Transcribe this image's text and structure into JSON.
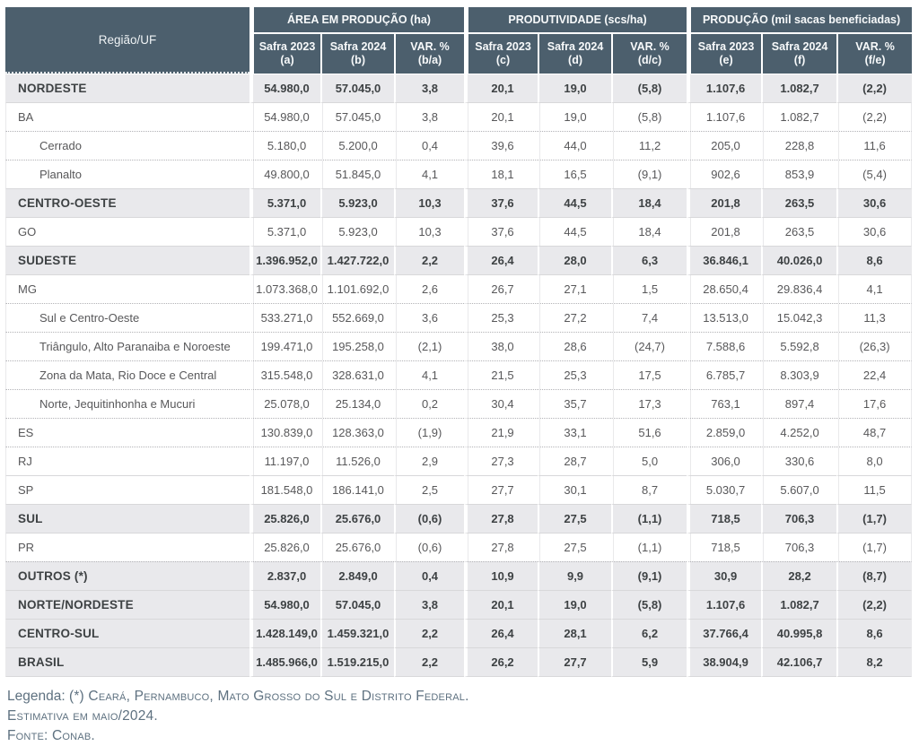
{
  "colors": {
    "header_bg": "#4c5f6d",
    "region_row_bg": "#e9e9ec",
    "divider_solid": "#d8d8da",
    "divider_dotted": "#b2b2b6",
    "legend_text": "#5e7180"
  },
  "table": {
    "region_header": "Região/UF",
    "groups": [
      "ÁREA EM PRODUÇÃO (ha)",
      "PRODUTIVIDADE (scs/ha)",
      "PRODUÇÃO (mil sacas beneficiadas)"
    ],
    "subheaders": [
      {
        "line1": "Safra 2023",
        "line2": "(a)"
      },
      {
        "line1": "Safra 2024",
        "line2": "(b)"
      },
      {
        "line1": "VAR. %",
        "line2": "(b/a)"
      },
      {
        "line1": "Safra 2023",
        "line2": "(c)"
      },
      {
        "line1": "Safra 2024",
        "line2": "(d)"
      },
      {
        "line1": "VAR. %",
        "line2": "(d/c)"
      },
      {
        "line1": "Safra 2023",
        "line2": "(e)"
      },
      {
        "line1": "Safra 2024",
        "line2": "(f)"
      },
      {
        "line1": "VAR. %",
        "line2": "(f/e)"
      }
    ],
    "rows": [
      {
        "label": "NORDESTE",
        "level": "region",
        "divider": "none",
        "values": [
          "54.980,0",
          "57.045,0",
          "3,8",
          "20,1",
          "19,0",
          "(5,8)",
          "1.107,6",
          "1.082,7",
          "(2,2)"
        ]
      },
      {
        "label": "BA",
        "level": "uf",
        "divider": "solid",
        "values": [
          "54.980,0",
          "57.045,0",
          "3,8",
          "20,1",
          "19,0",
          "(5,8)",
          "1.107,6",
          "1.082,7",
          "(2,2)"
        ]
      },
      {
        "label": "Cerrado",
        "level": "sub",
        "divider": "dotted",
        "values": [
          "5.180,0",
          "5.200,0",
          "0,4",
          "39,6",
          "44,0",
          "11,2",
          "205,0",
          "228,8",
          "11,6"
        ]
      },
      {
        "label": "Planalto",
        "level": "sub",
        "divider": "dotted",
        "values": [
          "49.800,0",
          "51.845,0",
          "4,1",
          "18,1",
          "16,5",
          "(9,1)",
          "902,6",
          "853,9",
          "(5,4)"
        ]
      },
      {
        "label": "CENTRO-OESTE",
        "level": "region",
        "divider": "solid",
        "values": [
          "5.371,0",
          "5.923,0",
          "10,3",
          "37,6",
          "44,5",
          "18,4",
          "201,8",
          "263,5",
          "30,6"
        ]
      },
      {
        "label": "GO",
        "level": "uf",
        "divider": "solid",
        "values": [
          "5.371,0",
          "5.923,0",
          "10,3",
          "37,6",
          "44,5",
          "18,4",
          "201,8",
          "263,5",
          "30,6"
        ]
      },
      {
        "label": "SUDESTE",
        "level": "region",
        "divider": "solid",
        "values": [
          "1.396.952,0",
          "1.427.722,0",
          "2,2",
          "26,4",
          "28,0",
          "6,3",
          "36.846,1",
          "40.026,0",
          "8,6"
        ]
      },
      {
        "label": "MG",
        "level": "uf",
        "divider": "solid",
        "values": [
          "1.073.368,0",
          "1.101.692,0",
          "2,6",
          "26,7",
          "27,1",
          "1,5",
          "28.650,4",
          "29.836,4",
          "4,1"
        ]
      },
      {
        "label": "Sul e Centro-Oeste",
        "level": "sub",
        "divider": "dotted",
        "values": [
          "533.271,0",
          "552.669,0",
          "3,6",
          "25,3",
          "27,2",
          "7,4",
          "13.513,0",
          "15.042,3",
          "11,3"
        ]
      },
      {
        "label": "Triângulo, Alto Paranaiba e Noroeste",
        "level": "sub",
        "divider": "dotted",
        "values": [
          "199.471,0",
          "195.258,0",
          "(2,1)",
          "38,0",
          "28,6",
          "(24,7)",
          "7.588,6",
          "5.592,8",
          "(26,3)"
        ]
      },
      {
        "label": "Zona da Mata, Rio Doce e Central",
        "level": "sub",
        "divider": "dotted",
        "values": [
          "315.548,0",
          "328.631,0",
          "4,1",
          "21,5",
          "25,3",
          "17,5",
          "6.785,7",
          "8.303,9",
          "22,4"
        ]
      },
      {
        "label": "Norte, Jequitinhonha e Mucuri",
        "level": "sub",
        "divider": "dotted",
        "values": [
          "25.078,0",
          "25.134,0",
          "0,2",
          "30,4",
          "35,7",
          "17,3",
          "763,1",
          "897,4",
          "17,6"
        ]
      },
      {
        "label": "ES",
        "level": "uf",
        "divider": "dotted",
        "values": [
          "130.839,0",
          "128.363,0",
          "(1,9)",
          "21,9",
          "33,1",
          "51,6",
          "2.859,0",
          "4.252,0",
          "48,7"
        ]
      },
      {
        "label": "RJ",
        "level": "uf",
        "divider": "dotted",
        "values": [
          "11.197,0",
          "11.526,0",
          "2,9",
          "27,3",
          "28,7",
          "5,0",
          "306,0",
          "330,6",
          "8,0"
        ]
      },
      {
        "label": "SP",
        "level": "uf",
        "divider": "solid",
        "values": [
          "181.548,0",
          "186.141,0",
          "2,5",
          "27,7",
          "30,1",
          "8,7",
          "5.030,7",
          "5.607,0",
          "11,5"
        ]
      },
      {
        "label": "SUL",
        "level": "region",
        "divider": "solid",
        "values": [
          "25.826,0",
          "25.676,0",
          "(0,6)",
          "27,8",
          "27,5",
          "(1,1)",
          "718,5",
          "706,3",
          "(1,7)"
        ]
      },
      {
        "label": "PR",
        "level": "uf",
        "divider": "solid",
        "values": [
          "25.826,0",
          "25.676,0",
          "(0,6)",
          "27,8",
          "27,5",
          "(1,1)",
          "718,5",
          "706,3",
          "(1,7)"
        ]
      },
      {
        "label": "OUTROS (*)",
        "level": "region",
        "divider": "dotted",
        "values": [
          "2.837,0",
          "2.849,0",
          "0,4",
          "10,9",
          "9,9",
          "(9,1)",
          "30,9",
          "28,2",
          "(8,7)"
        ]
      },
      {
        "label": "NORTE/NORDESTE",
        "level": "region",
        "divider": "solid",
        "values": [
          "54.980,0",
          "57.045,0",
          "3,8",
          "20,1",
          "19,0",
          "(5,8)",
          "1.107,6",
          "1.082,7",
          "(2,2)"
        ]
      },
      {
        "label": "CENTRO-SUL",
        "level": "region",
        "divider": "solid",
        "values": [
          "1.428.149,0",
          "1.459.321,0",
          "2,2",
          "26,4",
          "28,1",
          "6,2",
          "37.766,4",
          "40.995,8",
          "8,6"
        ]
      },
      {
        "label": "BRASIL",
        "level": "region",
        "divider": "solid",
        "values": [
          "1.485.966,0",
          "1.519.215,0",
          "2,2",
          "26,2",
          "27,7",
          "5,9",
          "38.904,9",
          "42.106,7",
          "8,2"
        ]
      }
    ]
  },
  "legend": {
    "line1_prefix": "Legenda: ",
    "line1_smallcaps": "(*) Ceará, Pernambuco, Mato Grosso do Sul e Distrito Federal.",
    "line2": "Estimativa em maio/2024.",
    "line3": "Fonte: Conab."
  }
}
